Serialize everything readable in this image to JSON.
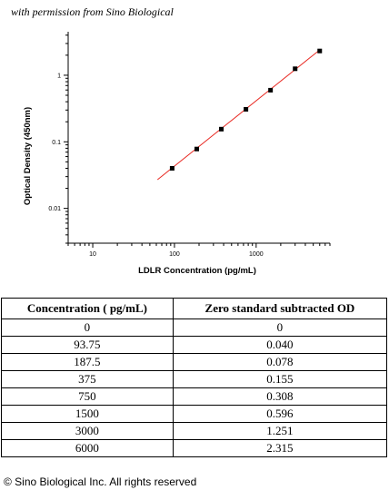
{
  "permission_note": "with permission from Sino Biological",
  "copyright": "© Sino Biological Inc. All rights reserved",
  "chart_data": {
    "type": "scatter",
    "xlabel": "LDLR Concentration (pg/mL)",
    "ylabel": "Optical Density (450nm)",
    "x_scale": "log",
    "y_scale": "log",
    "xlim": [
      5,
      8000
    ],
    "ylim": [
      0.003,
      4.5
    ],
    "x_ticks": [
      10,
      100,
      1000
    ],
    "x_tick_labels": [
      "10",
      "100",
      "1000"
    ],
    "y_ticks": [
      0.01,
      0.1,
      1
    ],
    "y_tick_labels": [
      "0.01",
      "0.1",
      "1"
    ],
    "grid": false,
    "points": [
      {
        "x": 93.75,
        "y": 0.04
      },
      {
        "x": 187.5,
        "y": 0.078
      },
      {
        "x": 375,
        "y": 0.155
      },
      {
        "x": 750,
        "y": 0.308
      },
      {
        "x": 1500,
        "y": 0.596
      },
      {
        "x": 3000,
        "y": 1.251
      },
      {
        "x": 6000,
        "y": 2.315
      }
    ],
    "fit_line": {
      "x": [
        62,
        6000
      ],
      "y": [
        0.027,
        2.4
      ]
    },
    "colors": {
      "points": "#000000",
      "fit_line": "#e8261f",
      "axes": "#000000"
    }
  },
  "table": {
    "headers": [
      "Concentration ( pg/mL)",
      "Zero standard subtracted OD"
    ],
    "rows": [
      [
        "0",
        "0"
      ],
      [
        "93.75",
        "0.040"
      ],
      [
        "187.5",
        "0.078"
      ],
      [
        "375",
        "0.155"
      ],
      [
        "750",
        "0.308"
      ],
      [
        "1500",
        "0.596"
      ],
      [
        "3000",
        "1.251"
      ],
      [
        "6000",
        "2.315"
      ]
    ]
  }
}
